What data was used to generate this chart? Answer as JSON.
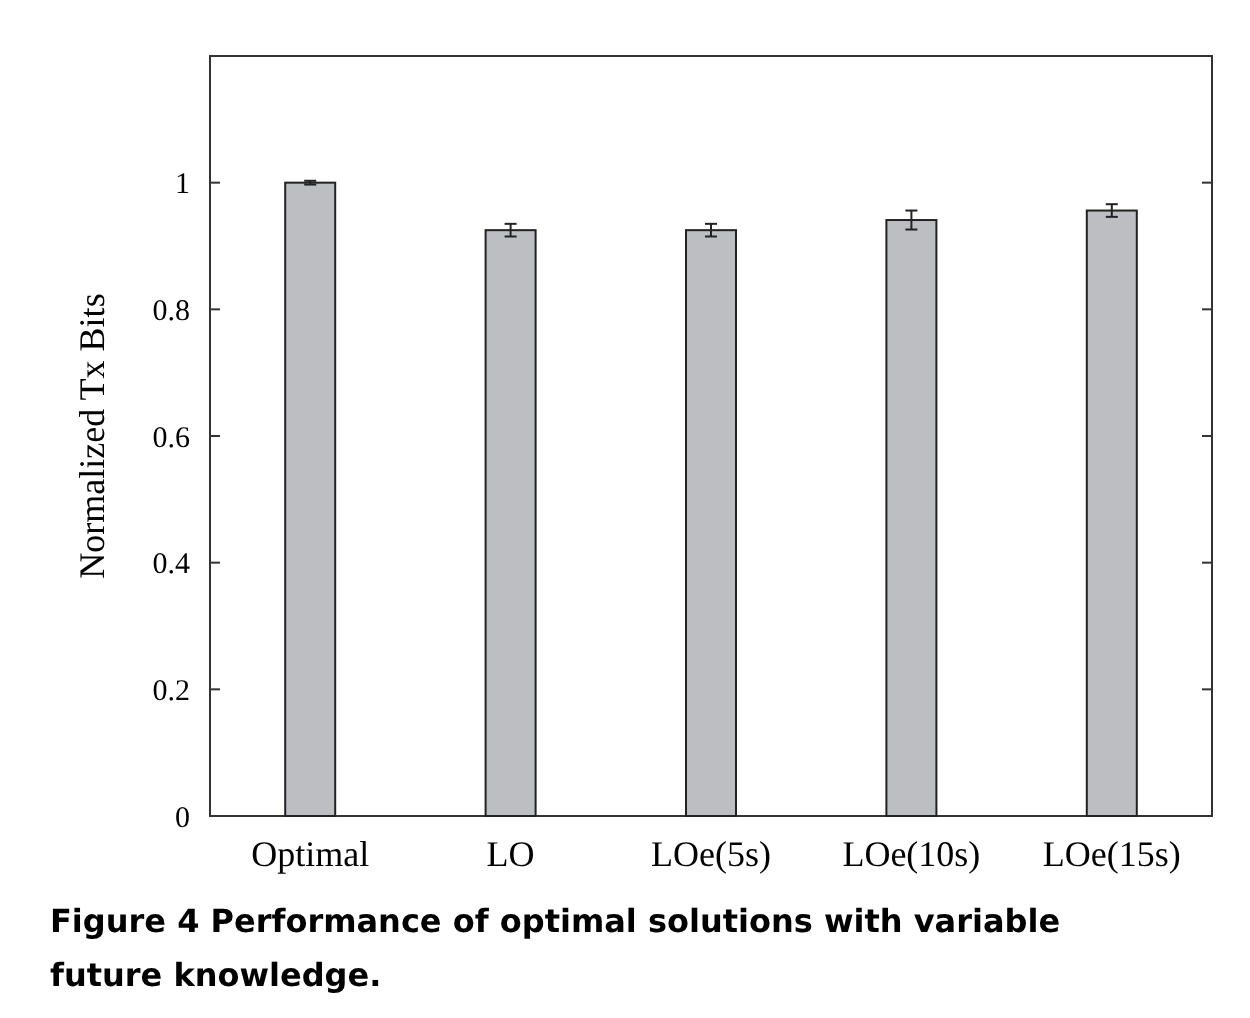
{
  "chart_data": {
    "type": "bar",
    "ylabel": "Normalized Tx Bits",
    "categories": [
      "Optimal",
      "LO",
      "LOe(5s)",
      "LOe(10s)",
      "LOe(15s)"
    ],
    "values": [
      1.0,
      0.925,
      0.925,
      0.941,
      0.956
    ],
    "errors": [
      0.003,
      0.01,
      0.01,
      0.015,
      0.01
    ],
    "color": "#bdbec2",
    "ylim": [
      0,
      1.2
    ],
    "yticks": [
      0,
      0.2,
      0.4,
      0.6,
      0.8,
      1
    ],
    "grid": false,
    "annotations": [
      "Figure 4 Performance of optimal solutions with variable future knowledge."
    ]
  }
}
